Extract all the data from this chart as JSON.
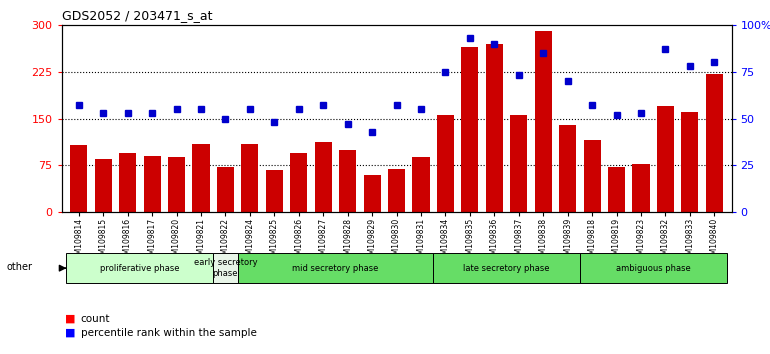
{
  "title": "GDS2052 / 203471_s_at",
  "samples": [
    "GSM109814",
    "GSM109815",
    "GSM109816",
    "GSM109817",
    "GSM109820",
    "GSM109821",
    "GSM109822",
    "GSM109824",
    "GSM109825",
    "GSM109826",
    "GSM109827",
    "GSM109828",
    "GSM109829",
    "GSM109830",
    "GSM109831",
    "GSM109834",
    "GSM109835",
    "GSM109836",
    "GSM109837",
    "GSM109838",
    "GSM109839",
    "GSM109818",
    "GSM109819",
    "GSM109823",
    "GSM109832",
    "GSM109833",
    "GSM109840"
  ],
  "counts": [
    108,
    85,
    95,
    90,
    88,
    110,
    72,
    110,
    68,
    95,
    112,
    100,
    60,
    70,
    88,
    155,
    265,
    270,
    155,
    290,
    140,
    115,
    72,
    78,
    170,
    160,
    222
  ],
  "percentile": [
    57,
    53,
    53,
    53,
    55,
    55,
    50,
    55,
    48,
    55,
    57,
    47,
    43,
    57,
    55,
    75,
    93,
    90,
    73,
    85,
    70,
    57,
    52,
    53,
    87,
    78,
    80
  ],
  "phases": [
    {
      "label": "proliferative phase",
      "start": 0,
      "end": 6,
      "color": "#ccffcc"
    },
    {
      "label": "early secretory\nphase",
      "start": 6,
      "end": 7,
      "color": "#e8f5e8"
    },
    {
      "label": "mid secretory phase",
      "start": 7,
      "end": 15,
      "color": "#66dd66"
    },
    {
      "label": "late secretory phase",
      "start": 15,
      "end": 21,
      "color": "#66dd66"
    },
    {
      "label": "ambiguous phase",
      "start": 21,
      "end": 27,
      "color": "#66dd66"
    }
  ],
  "bar_color": "#cc0000",
  "dot_color": "#0000cc",
  "left_ylim": [
    0,
    300
  ],
  "right_ylim": [
    0,
    100
  ],
  "left_yticks": [
    0,
    75,
    150,
    225,
    300
  ],
  "right_yticks": [
    0,
    25,
    50,
    75,
    100
  ],
  "right_yticklabels": [
    "0",
    "25",
    "50",
    "75",
    "100%"
  ],
  "hlines": [
    75,
    150,
    225
  ],
  "plot_bg": "#ffffff",
  "fig_bg": "#ffffff"
}
